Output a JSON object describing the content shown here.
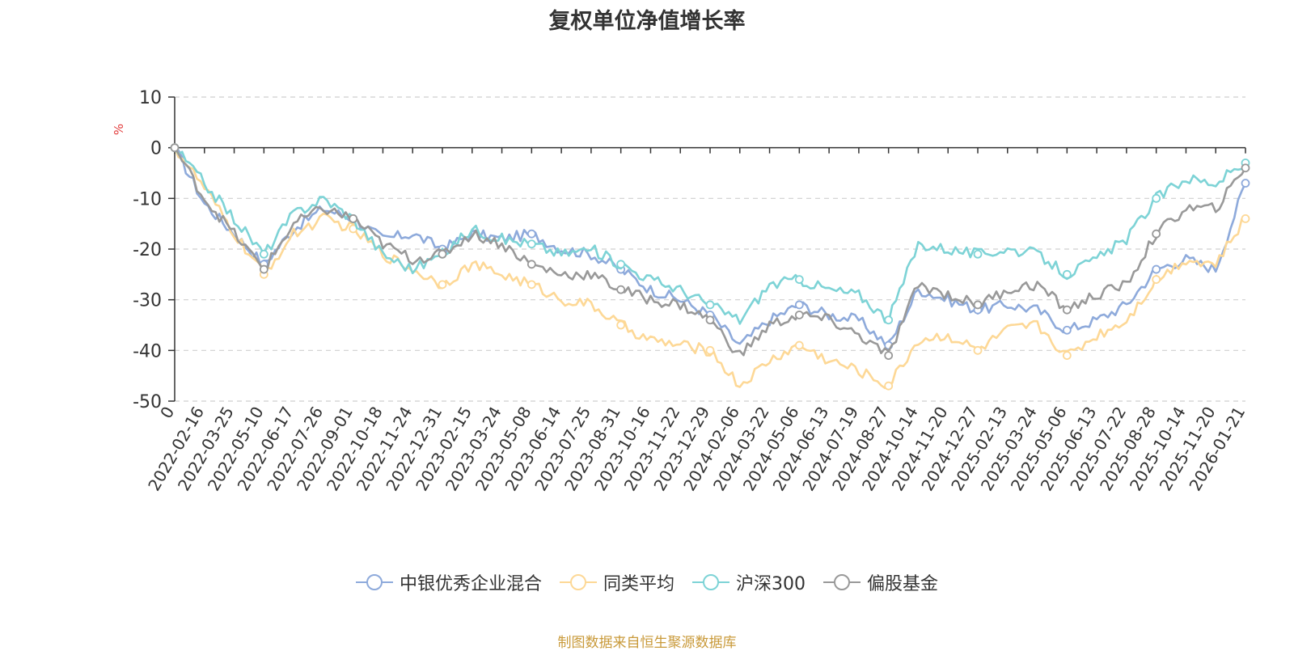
{
  "chart_data": {
    "type": "line",
    "title": "复权单位净值增长率",
    "ylabel": "%",
    "ylim": [
      -50,
      10
    ],
    "yticks": [
      10,
      0,
      -10,
      -20,
      -30,
      -40,
      -50
    ],
    "categories": [
      "0",
      "2022-02-16",
      "2022-03-25",
      "2022-05-10",
      "2022-06-17",
      "2022-07-26",
      "2022-09-01",
      "2022-10-18",
      "2022-11-24",
      "2022-12-31",
      "2023-02-15",
      "2023-03-24",
      "2023-05-08",
      "2023-06-14",
      "2023-07-25",
      "2023-08-31",
      "2023-10-16",
      "2023-11-22",
      "2023-12-29",
      "2024-02-06",
      "2024-03-22",
      "2024-05-06",
      "2024-06-13",
      "2024-07-19",
      "2024-08-27",
      "2024-10-14",
      "2024-11-20",
      "2024-12-27",
      "2025-02-13",
      "2025-03-24",
      "2025-05-06",
      "2025-06-13",
      "2025-07-22",
      "2025-08-28",
      "2025-10-14",
      "2025-11-20",
      "2026-01-21"
    ],
    "series": [
      {
        "name": "中银优秀企业混合",
        "color": "#8eaadb",
        "values": [
          0,
          -11,
          -17,
          -23,
          -16,
          -12,
          -14,
          -18,
          -17,
          -20,
          -17,
          -18,
          -17,
          -20,
          -21,
          -24,
          -28,
          -30,
          -33,
          -39,
          -34,
          -31,
          -33,
          -34,
          -39,
          -28,
          -30,
          -32,
          -31,
          -32,
          -36,
          -34,
          -31,
          -24,
          -22,
          -24,
          -7
        ]
      },
      {
        "name": "同类平均",
        "color": "#fdd896",
        "values": [
          0,
          -8,
          -17,
          -25,
          -17,
          -14,
          -16,
          -21,
          -24,
          -27,
          -23,
          -25,
          -27,
          -30,
          -31,
          -35,
          -38,
          -39,
          -40,
          -47,
          -42,
          -39,
          -42,
          -44,
          -47,
          -38,
          -37,
          -40,
          -36,
          -35,
          -41,
          -37,
          -34,
          -26,
          -22,
          -23,
          -14
        ]
      },
      {
        "name": "沪深300",
        "color": "#7dd3d6",
        "values": [
          0,
          -7,
          -14,
          -21,
          -13,
          -10,
          -14,
          -21,
          -24,
          -21,
          -16,
          -18,
          -19,
          -21,
          -20,
          -23,
          -26,
          -28,
          -31,
          -34,
          -27,
          -26,
          -28,
          -29,
          -34,
          -19,
          -20,
          -21,
          -20,
          -21,
          -25,
          -22,
          -18,
          -10,
          -6,
          -7,
          -3
        ]
      },
      {
        "name": "偏股基金",
        "color": "#999999",
        "values": [
          0,
          -10,
          -17,
          -24,
          -15,
          -12,
          -14,
          -19,
          -22,
          -21,
          -17,
          -19,
          -23,
          -25,
          -25,
          -28,
          -30,
          -31,
          -34,
          -41,
          -35,
          -33,
          -34,
          -37,
          -41,
          -27,
          -29,
          -31,
          -28,
          -27,
          -32,
          -29,
          -27,
          -17,
          -12,
          -12,
          -4
        ]
      }
    ],
    "legend_position": "bottom"
  },
  "source_note": "制图数据来自恒生聚源数据库"
}
